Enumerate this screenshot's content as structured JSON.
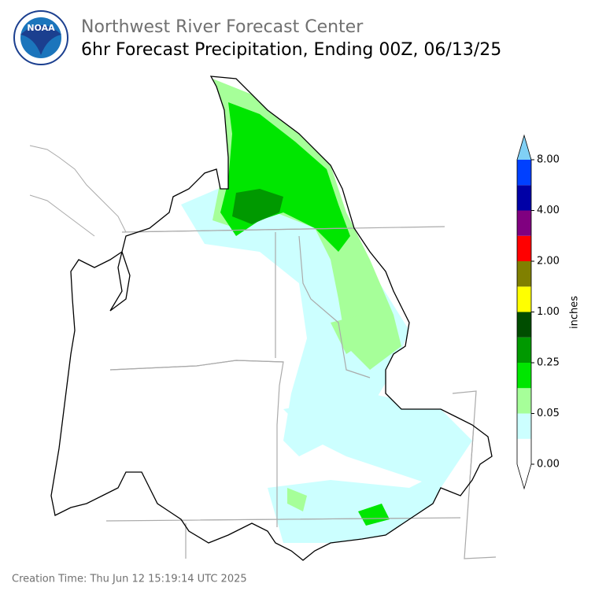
{
  "header": {
    "title": "Northwest River Forecast Center",
    "subtitle": "6hr Forecast Precipitation, Ending 00Z, 06/13/25"
  },
  "logo": {
    "text": "NOAA"
  },
  "colorbar": {
    "label": "inches",
    "colors": [
      "#ffffff",
      "#ccffff",
      "#a6ff99",
      "#00e600",
      "#009900",
      "#004d00",
      "#ffff00",
      "#808000",
      "#ff0000",
      "#800080",
      "#0000a6",
      "#0040ff"
    ],
    "under_color": "#ffffff",
    "over_color": "#80d0f5",
    "ticks": [
      {
        "value": 0,
        "label": "0.00"
      },
      {
        "value": 0.05,
        "label": "0.05"
      },
      {
        "value": 0.25,
        "label": "0.25"
      },
      {
        "value": 1,
        "label": "1.00"
      },
      {
        "value": 2,
        "label": "2.00"
      },
      {
        "value": 4,
        "label": "4.00"
      },
      {
        "value": 8,
        "label": "8.00"
      }
    ]
  },
  "footer": {
    "creation_time": "Creation Time: Thu Jun 12 15:19:14 UTC 2025"
  }
}
